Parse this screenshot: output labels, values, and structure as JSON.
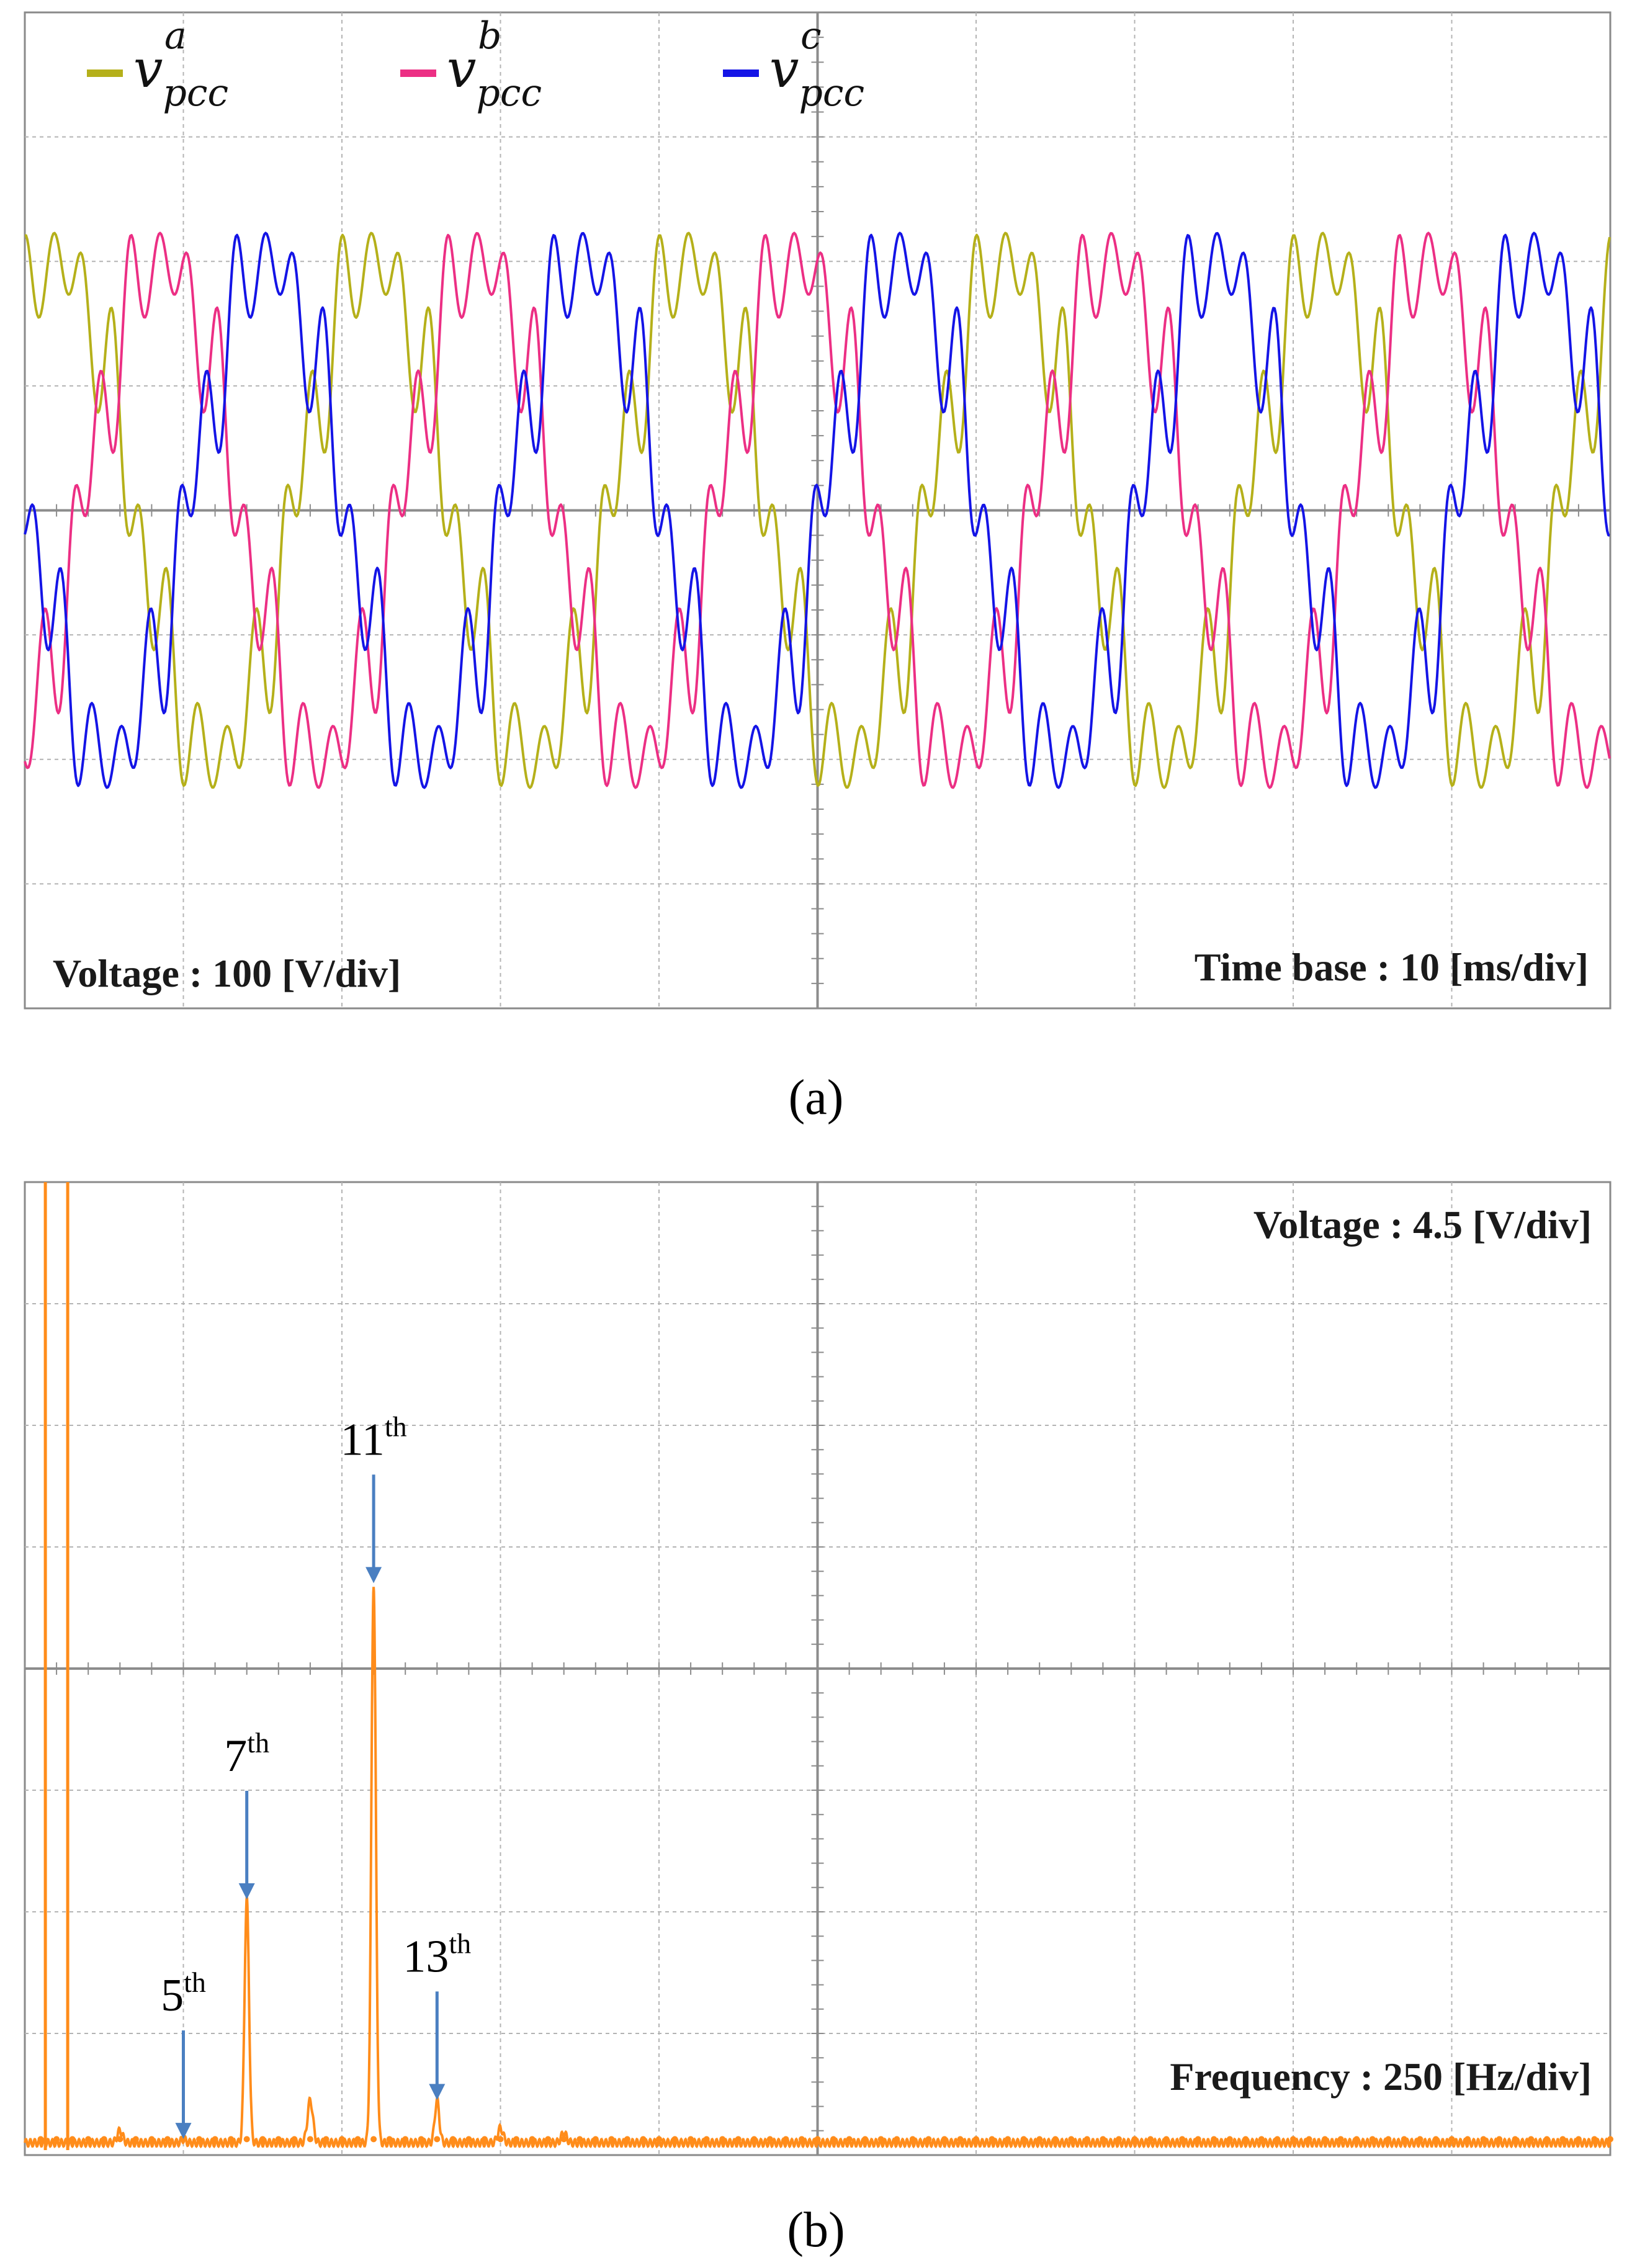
{
  "chart_data": [
    {
      "type": "line",
      "panel_label": "(a)",
      "legend": [
        {
          "base": "v",
          "sub": "pcc",
          "sup": "a",
          "color": "#b5b01a"
        },
        {
          "base": "v",
          "sub": "pcc",
          "sup": "b",
          "color": "#ec2f84"
        },
        {
          "base": "v",
          "sub": "pcc",
          "sup": "c",
          "color": "#1414e6"
        }
      ],
      "annotations": {
        "y_scale": "Voltage : 100 [V/div]",
        "x_scale": "Time base : 10 [ms/div]"
      },
      "grid": {
        "x_divisions": 10,
        "y_divisions": 8,
        "minor_ticks": 5
      },
      "fundamental_hz": 50,
      "amplitude_div": 2.0,
      "harmonics": [
        {
          "order": 5,
          "amplitude_div": 0.09
        },
        {
          "order": 7,
          "amplitude_div": 0.22
        },
        {
          "order": 11,
          "amplitude_div": 0.42
        },
        {
          "order": 13,
          "amplitude_div": 0.08
        }
      ],
      "series": [
        {
          "phase": "a",
          "phase_shift_deg": 0,
          "initial_value_div": 1.6
        },
        {
          "phase": "b",
          "phase_shift_deg": -120,
          "initial_value_div": -1.5
        },
        {
          "phase": "c",
          "phase_shift_deg": 120,
          "initial_value_div": -0.2
        }
      ],
      "xlim_div": [
        0,
        10
      ],
      "ylim_div": [
        -4,
        4
      ]
    },
    {
      "type": "line",
      "panel_label": "(b)",
      "annotations": {
        "y_scale": "Voltage : 4.5 [V/div]",
        "x_scale": "Frequency : 250 [Hz/div]"
      },
      "grid": {
        "x_divisions": 10,
        "y_divisions": 8,
        "minor_ticks": 5
      },
      "line_color": "#ff8c1a",
      "peaks": [
        {
          "label_num": "5",
          "label_sup": "th",
          "freq_hz": 250,
          "value_div": 0.03
        },
        {
          "label_num": "7",
          "label_sup": "th",
          "freq_hz": 350,
          "value_div": 2.0
        },
        {
          "label_num": "11",
          "label_sup": "th",
          "freq_hz": 550,
          "value_div": 4.6
        },
        {
          "label_num": "13",
          "label_sup": "th",
          "freq_hz": 650,
          "value_div": 0.35
        }
      ],
      "fundamental": {
        "freq_hz": 50,
        "value_div": "off-scale"
      },
      "minor_bumps": [
        {
          "freq_hz": 150,
          "value_div": 0.1
        },
        {
          "freq_hz": 450,
          "value_div": 0.35
        },
        {
          "freq_hz": 750,
          "value_div": 0.12
        },
        {
          "freq_hz": 850,
          "value_div": 0.08
        }
      ],
      "xlim_hz": [
        0,
        2500
      ],
      "ylim_div": [
        0,
        8
      ]
    }
  ]
}
